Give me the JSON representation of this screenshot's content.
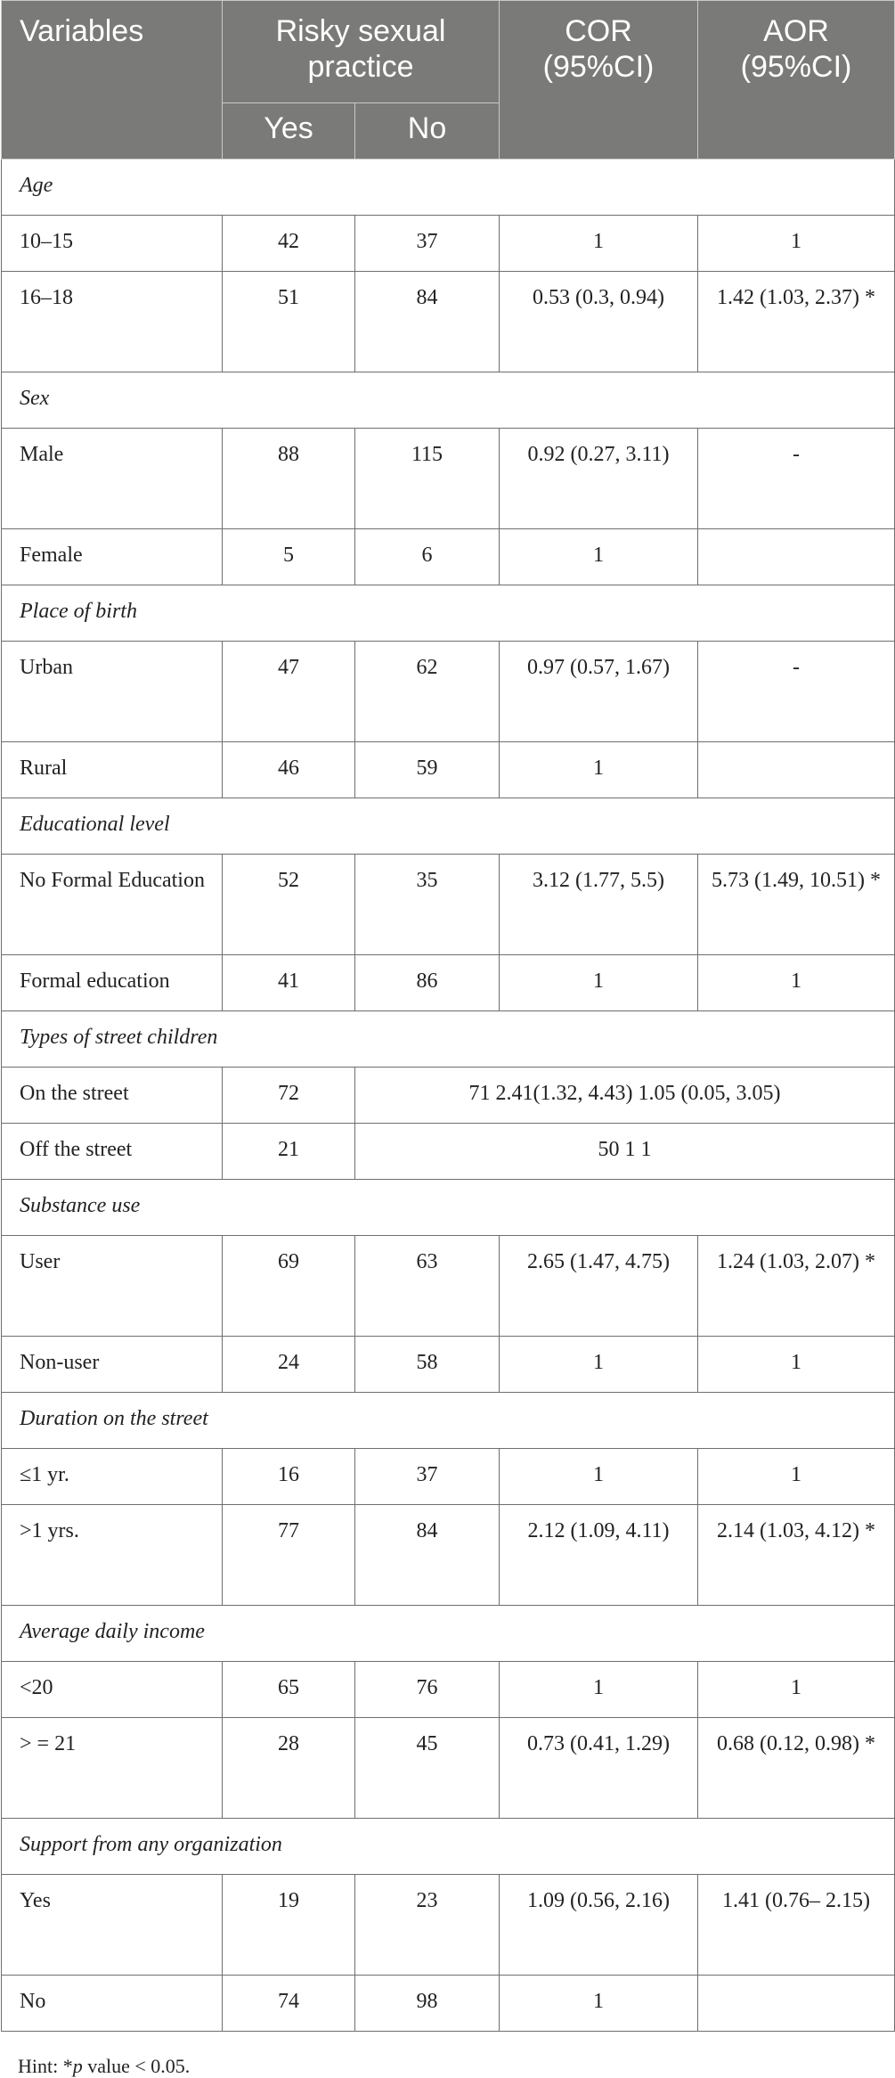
{
  "header": {
    "variables": "Variables",
    "group": "Risky sexual practice",
    "yes": "Yes",
    "no": "No",
    "cor": "COR (95%CI)",
    "aor": "AOR (95%CI)"
  },
  "rows": [
    {
      "section": "Age"
    },
    {
      "label": "10–15",
      "yes": "42",
      "no": "37",
      "cor": "1",
      "aor": "1"
    },
    {
      "label": "16–18",
      "yes": "51",
      "no": "84",
      "cor": "0.53 (0.3, 0.94)",
      "aor": "1.42 (1.03, 2.37) *"
    },
    {
      "section": "Sex"
    },
    {
      "label": "Male",
      "yes": "88",
      "no": "115",
      "cor": "0.92 (0.27, 3.11)",
      "aor": "-"
    },
    {
      "label": "Female",
      "yes": "5",
      "no": "6",
      "cor": "1",
      "aor": ""
    },
    {
      "section": "Place of birth"
    },
    {
      "label": "Urban",
      "yes": "47",
      "no": "62",
      "cor": "0.97 (0.57, 1.67)",
      "aor": "-"
    },
    {
      "label": "Rural",
      "yes": "46",
      "no": "59",
      "cor": "1",
      "aor": ""
    },
    {
      "section": "Educational level"
    },
    {
      "label": "No Formal Education",
      "yes": "52",
      "no": "35",
      "cor": "3.12 (1.77, 5.5)",
      "aor": "5.73 (1.49, 10.51) *"
    },
    {
      "label": "Formal education",
      "yes": "41",
      "no": "86",
      "cor": "1",
      "aor": "1"
    },
    {
      "section": "Types of street children"
    },
    {
      "label": "On the street",
      "yes": "72",
      "merged": "71 2.41(1.32, 4.43) 1.05 (0.05, 3.05)"
    },
    {
      "label": "Off the street",
      "yes": "21",
      "merged": "50 1 1"
    },
    {
      "section": "Substance use"
    },
    {
      "label": "User",
      "yes": "69",
      "no": "63",
      "cor": "2.65 (1.47, 4.75)",
      "aor": "1.24 (1.03, 2.07) *"
    },
    {
      "label": "Non-user",
      "yes": "24",
      "no": "58",
      "cor": "1",
      "aor": "1"
    },
    {
      "section": "Duration on the street"
    },
    {
      "label": "≤1 yr.",
      "yes": "16",
      "no": "37",
      "cor": "1",
      "aor": "1"
    },
    {
      "label": ">1 yrs.",
      "yes": "77",
      "no": "84",
      "cor": "2.12 (1.09, 4.11)",
      "aor": "2.14 (1.03, 4.12) *"
    },
    {
      "section": "Average daily income"
    },
    {
      "label": "<20",
      "yes": "65",
      "no": "76",
      "cor": "1",
      "aor": "1"
    },
    {
      "label": "> = 21",
      "yes": "28",
      "no": "45",
      "cor": "0.73 (0.41, 1.29)",
      "aor": "0.68 (0.12, 0.98) *"
    },
    {
      "section": "Support from any organization"
    },
    {
      "label": "Yes",
      "yes": "19",
      "no": "23",
      "cor": "1.09 (0.56, 2.16)",
      "aor": "1.41 (0.76– 2.15)"
    },
    {
      "label": "No",
      "yes": "74",
      "no": "98",
      "cor": "1",
      "aor": ""
    }
  ],
  "hint": {
    "prefix": "Hint: *",
    "p": "p",
    "suffix": " value < 0.05."
  }
}
